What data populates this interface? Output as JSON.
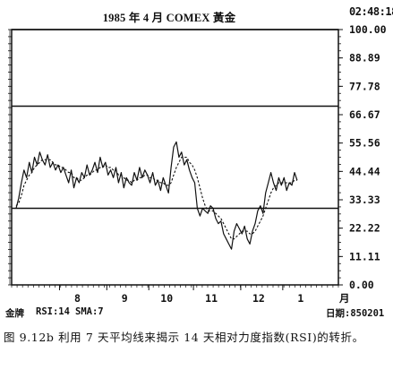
{
  "chart_data": {
    "type": "line",
    "title": "1985 年 4 月 COMEX 黃金",
    "clock": "02:48:18",
    "ylim": [
      0,
      100
    ],
    "y_ticks": [
      "100.00",
      "88.89",
      "77.78",
      "66.67",
      "55.56",
      "44.44",
      "33.33",
      "22.22",
      "11.11",
      "0.00"
    ],
    "x_ticks": [
      "8",
      "9",
      "10",
      "11",
      "12",
      "1"
    ],
    "x_unit": "月",
    "reference_lines": [
      100,
      70,
      30
    ],
    "x_domain": [
      0,
      121
    ],
    "month_positions": [
      8,
      26,
      42,
      59,
      77,
      93
    ],
    "series": [
      {
        "style": "solid",
        "x": [
          0,
          1,
          2,
          3,
          4,
          5,
          6,
          7,
          8,
          9,
          10,
          11,
          12,
          13,
          14,
          15,
          16,
          17,
          18,
          19,
          20,
          21,
          22,
          23,
          24,
          25,
          26,
          27,
          28,
          29,
          30,
          31,
          32,
          33,
          34,
          35,
          36,
          37,
          38,
          39,
          40,
          41,
          42,
          43,
          44,
          45,
          46,
          47,
          48,
          49,
          50,
          51,
          52,
          53,
          54,
          55,
          56,
          57,
          58,
          59,
          60,
          61,
          62,
          63,
          64,
          65,
          66,
          67,
          68,
          69,
          70,
          71,
          72,
          73,
          74,
          75,
          76,
          77,
          78,
          79,
          80,
          81,
          82,
          83,
          84,
          85,
          86,
          87,
          88,
          89,
          90,
          91,
          92,
          93,
          94,
          95,
          96,
          97,
          98,
          99,
          100,
          101,
          102,
          103,
          104,
          105,
          106,
          107
        ],
        "values": [
          30,
          34,
          40,
          45,
          42,
          48,
          44,
          50,
          47,
          52,
          49,
          47,
          51,
          46,
          48,
          45,
          47,
          44,
          46,
          43,
          40,
          45,
          38,
          42,
          40,
          44,
          42,
          47,
          43,
          45,
          48,
          44,
          50,
          46,
          48,
          43,
          45,
          42,
          46,
          40,
          44,
          38,
          42,
          40,
          39,
          44,
          41,
          46,
          42,
          45,
          43,
          40,
          44,
          39,
          41,
          37,
          42,
          39,
          36,
          46,
          54,
          56,
          50,
          52,
          47,
          49,
          45,
          42,
          40,
          30,
          27,
          30,
          29,
          28,
          31,
          30,
          26,
          24,
          25,
          20,
          18,
          16,
          14,
          21,
          24,
          22,
          20,
          23,
          18,
          16,
          21,
          24,
          29,
          31,
          28,
          36,
          40,
          44,
          40,
          37,
          42,
          39,
          42,
          37,
          40,
          39,
          44,
          41
        ]
      },
      {
        "style": "dashed",
        "x": [
          0,
          1,
          2,
          3,
          4,
          5,
          6,
          7,
          8,
          9,
          10,
          11,
          12,
          13,
          14,
          15,
          16,
          17,
          18,
          19,
          20,
          21,
          22,
          23,
          24,
          25,
          26,
          27,
          28,
          29,
          30,
          31,
          32,
          33,
          34,
          35,
          36,
          37,
          38,
          39,
          40,
          41,
          42,
          43,
          44,
          45,
          46,
          47,
          48,
          49,
          50,
          51,
          52,
          53,
          54,
          55,
          56,
          57,
          58,
          59,
          60,
          61,
          62,
          63,
          64,
          65,
          66,
          67,
          68,
          69,
          70,
          71,
          72,
          73,
          74,
          75,
          76,
          77,
          78,
          79,
          80,
          81,
          82,
          83,
          84,
          85,
          86,
          87,
          88,
          89,
          90,
          91,
          92,
          93,
          94,
          95,
          96,
          97,
          98,
          99,
          100,
          101,
          102,
          103,
          104,
          105,
          106,
          107
        ],
        "values": [
          31,
          32,
          35,
          39,
          41,
          43,
          44,
          46,
          47,
          48,
          49,
          49,
          49,
          49,
          48,
          47,
          47,
          46,
          46,
          45,
          44,
          44,
          42,
          42,
          41,
          41,
          42,
          43,
          43,
          44,
          45,
          45,
          46,
          46,
          47,
          46,
          46,
          45,
          45,
          43,
          43,
          42,
          41,
          41,
          40,
          41,
          41,
          42,
          42,
          43,
          43,
          42,
          42,
          41,
          41,
          40,
          40,
          39,
          39,
          40,
          43,
          46,
          48,
          50,
          50,
          50,
          48,
          47,
          45,
          42,
          38,
          34,
          31,
          29,
          29,
          29,
          28,
          27,
          26,
          24,
          22,
          20,
          18,
          18,
          19,
          20,
          21,
          21,
          21,
          20,
          20,
          21,
          23,
          25,
          27,
          30,
          33,
          36,
          38,
          39,
          40,
          40,
          40,
          40,
          40,
          40,
          41,
          41
        ]
      }
    ]
  },
  "footer": {
    "left": "金牌",
    "indicator1": "RSI:14",
    "indicator2": "SMA:7",
    "date": "日期:850201"
  },
  "caption": "图 9.12b  利用 7 天平均线来揭示 14 天相对力度指数(RSI)的转折。"
}
